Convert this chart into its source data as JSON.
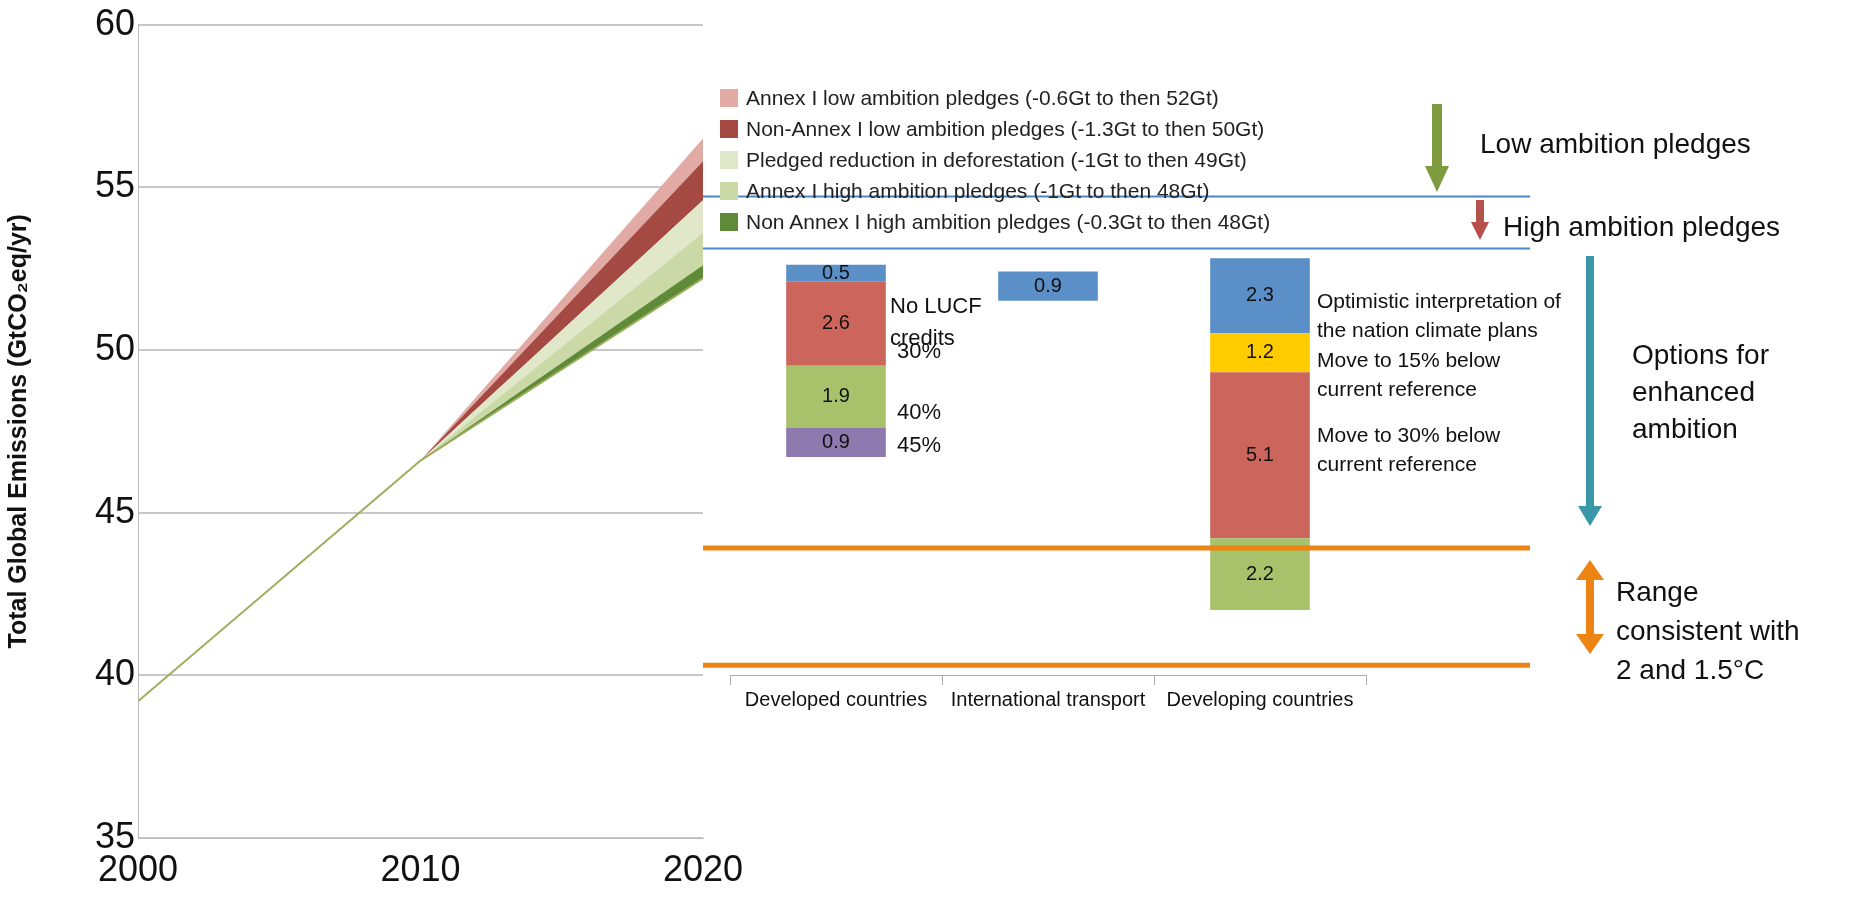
{
  "chart_data": [
    {
      "type": "area",
      "ylabel": "Total Global Emissions (GtCO₂eq/yr)",
      "xlim": [
        2000,
        2020
      ],
      "xticks": [
        2000,
        2010,
        2020
      ],
      "ylim": [
        35,
        60
      ],
      "yticks": [
        35,
        40,
        45,
        50,
        55,
        60
      ],
      "grid": "y",
      "legend": "right",
      "series": [
        {
          "type": "line",
          "color": "#9bae5b",
          "x": [
            2000,
            2010,
            2020
          ],
          "values": [
            39.2,
            46.6,
            52.2
          ]
        },
        {
          "type": "area",
          "name": "Non Annex I high ambition pledges (-0.3Gt to then 48Gt)",
          "color": "#5f8a37",
          "x": [
            2010,
            2020
          ],
          "values": [
            46.6,
            52.6
          ]
        },
        {
          "type": "area",
          "name": "Annex I high ambition pledges (-1Gt to then 48Gt)",
          "color": "#cbd9a7",
          "x": [
            2010,
            2020
          ],
          "values": [
            46.6,
            53.6
          ]
        },
        {
          "type": "area",
          "name": "Pledged reduction in deforestation (-1Gt to then 49Gt)",
          "color": "#e1e7c9",
          "x": [
            2010,
            2020
          ],
          "values": [
            46.6,
            54.6
          ]
        },
        {
          "type": "area",
          "name": "Non-Annex I low ambition pledges (-1.3Gt to then 50Gt)",
          "color": "#a54a42",
          "x": [
            2010,
            2020
          ],
          "values": [
            46.6,
            55.8
          ]
        },
        {
          "type": "area",
          "name": "Annex I low ambition pledges (-0.6Gt to then 52Gt)",
          "color": "#e2aaa5",
          "x": [
            2010,
            2020
          ],
          "values": [
            46.6,
            56.5
          ]
        }
      ]
    },
    {
      "type": "bar",
      "categories": [
        "Developed countries",
        "International transport",
        "Developing countries"
      ],
      "ylim": [
        40,
        60
      ],
      "yticks": [
        40,
        45,
        50,
        55,
        60
      ],
      "tick_labels": "x",
      "data_labels": true,
      "series": [
        {
          "colors": [
            "#8f7ab0",
            "#5b8fc7",
            "#a8c26b"
          ],
          "base": [
            46.7,
            51.5,
            42.0
          ],
          "values": [
            0.9,
            0.9,
            2.2
          ]
        },
        {
          "colors": [
            "#a8c26b",
            null,
            "#cc665c"
          ],
          "base": [
            47.6,
            null,
            44.2
          ],
          "values": [
            1.9,
            null,
            5.1
          ]
        },
        {
          "colors": [
            "#cc665c",
            null,
            "#ffcc00"
          ],
          "base": [
            49.5,
            null,
            49.3
          ],
          "values": [
            2.6,
            null,
            1.2
          ]
        },
        {
          "colors": [
            "#5b8fc7",
            null,
            "#5b8fc7"
          ],
          "base": [
            52.1,
            null,
            50.5
          ],
          "values": [
            0.5,
            null,
            2.3
          ]
        }
      ],
      "ref_lines": [
        {
          "axis": "y",
          "value": 54.7,
          "color": "#4a86c8"
        },
        {
          "axis": "y",
          "value": 53.1,
          "color": "#4a86c8"
        },
        {
          "axis": "y",
          "value": 43.9,
          "color": "#ec8413"
        },
        {
          "axis": "y",
          "value": 40.3,
          "color": "#ec8413"
        }
      ],
      "annotations": [
        "No LUCF credits",
        "30%",
        "40%",
        "45%",
        "Optimistic interpretation of the nation climate plans",
        "Move to 15% below current reference",
        "Move to 30% below current reference",
        "Low ambition pledges",
        "High ambition pledges",
        "Options for enhanced ambition",
        "Range consistent with 2 and 1.5°C"
      ]
    }
  ]
}
